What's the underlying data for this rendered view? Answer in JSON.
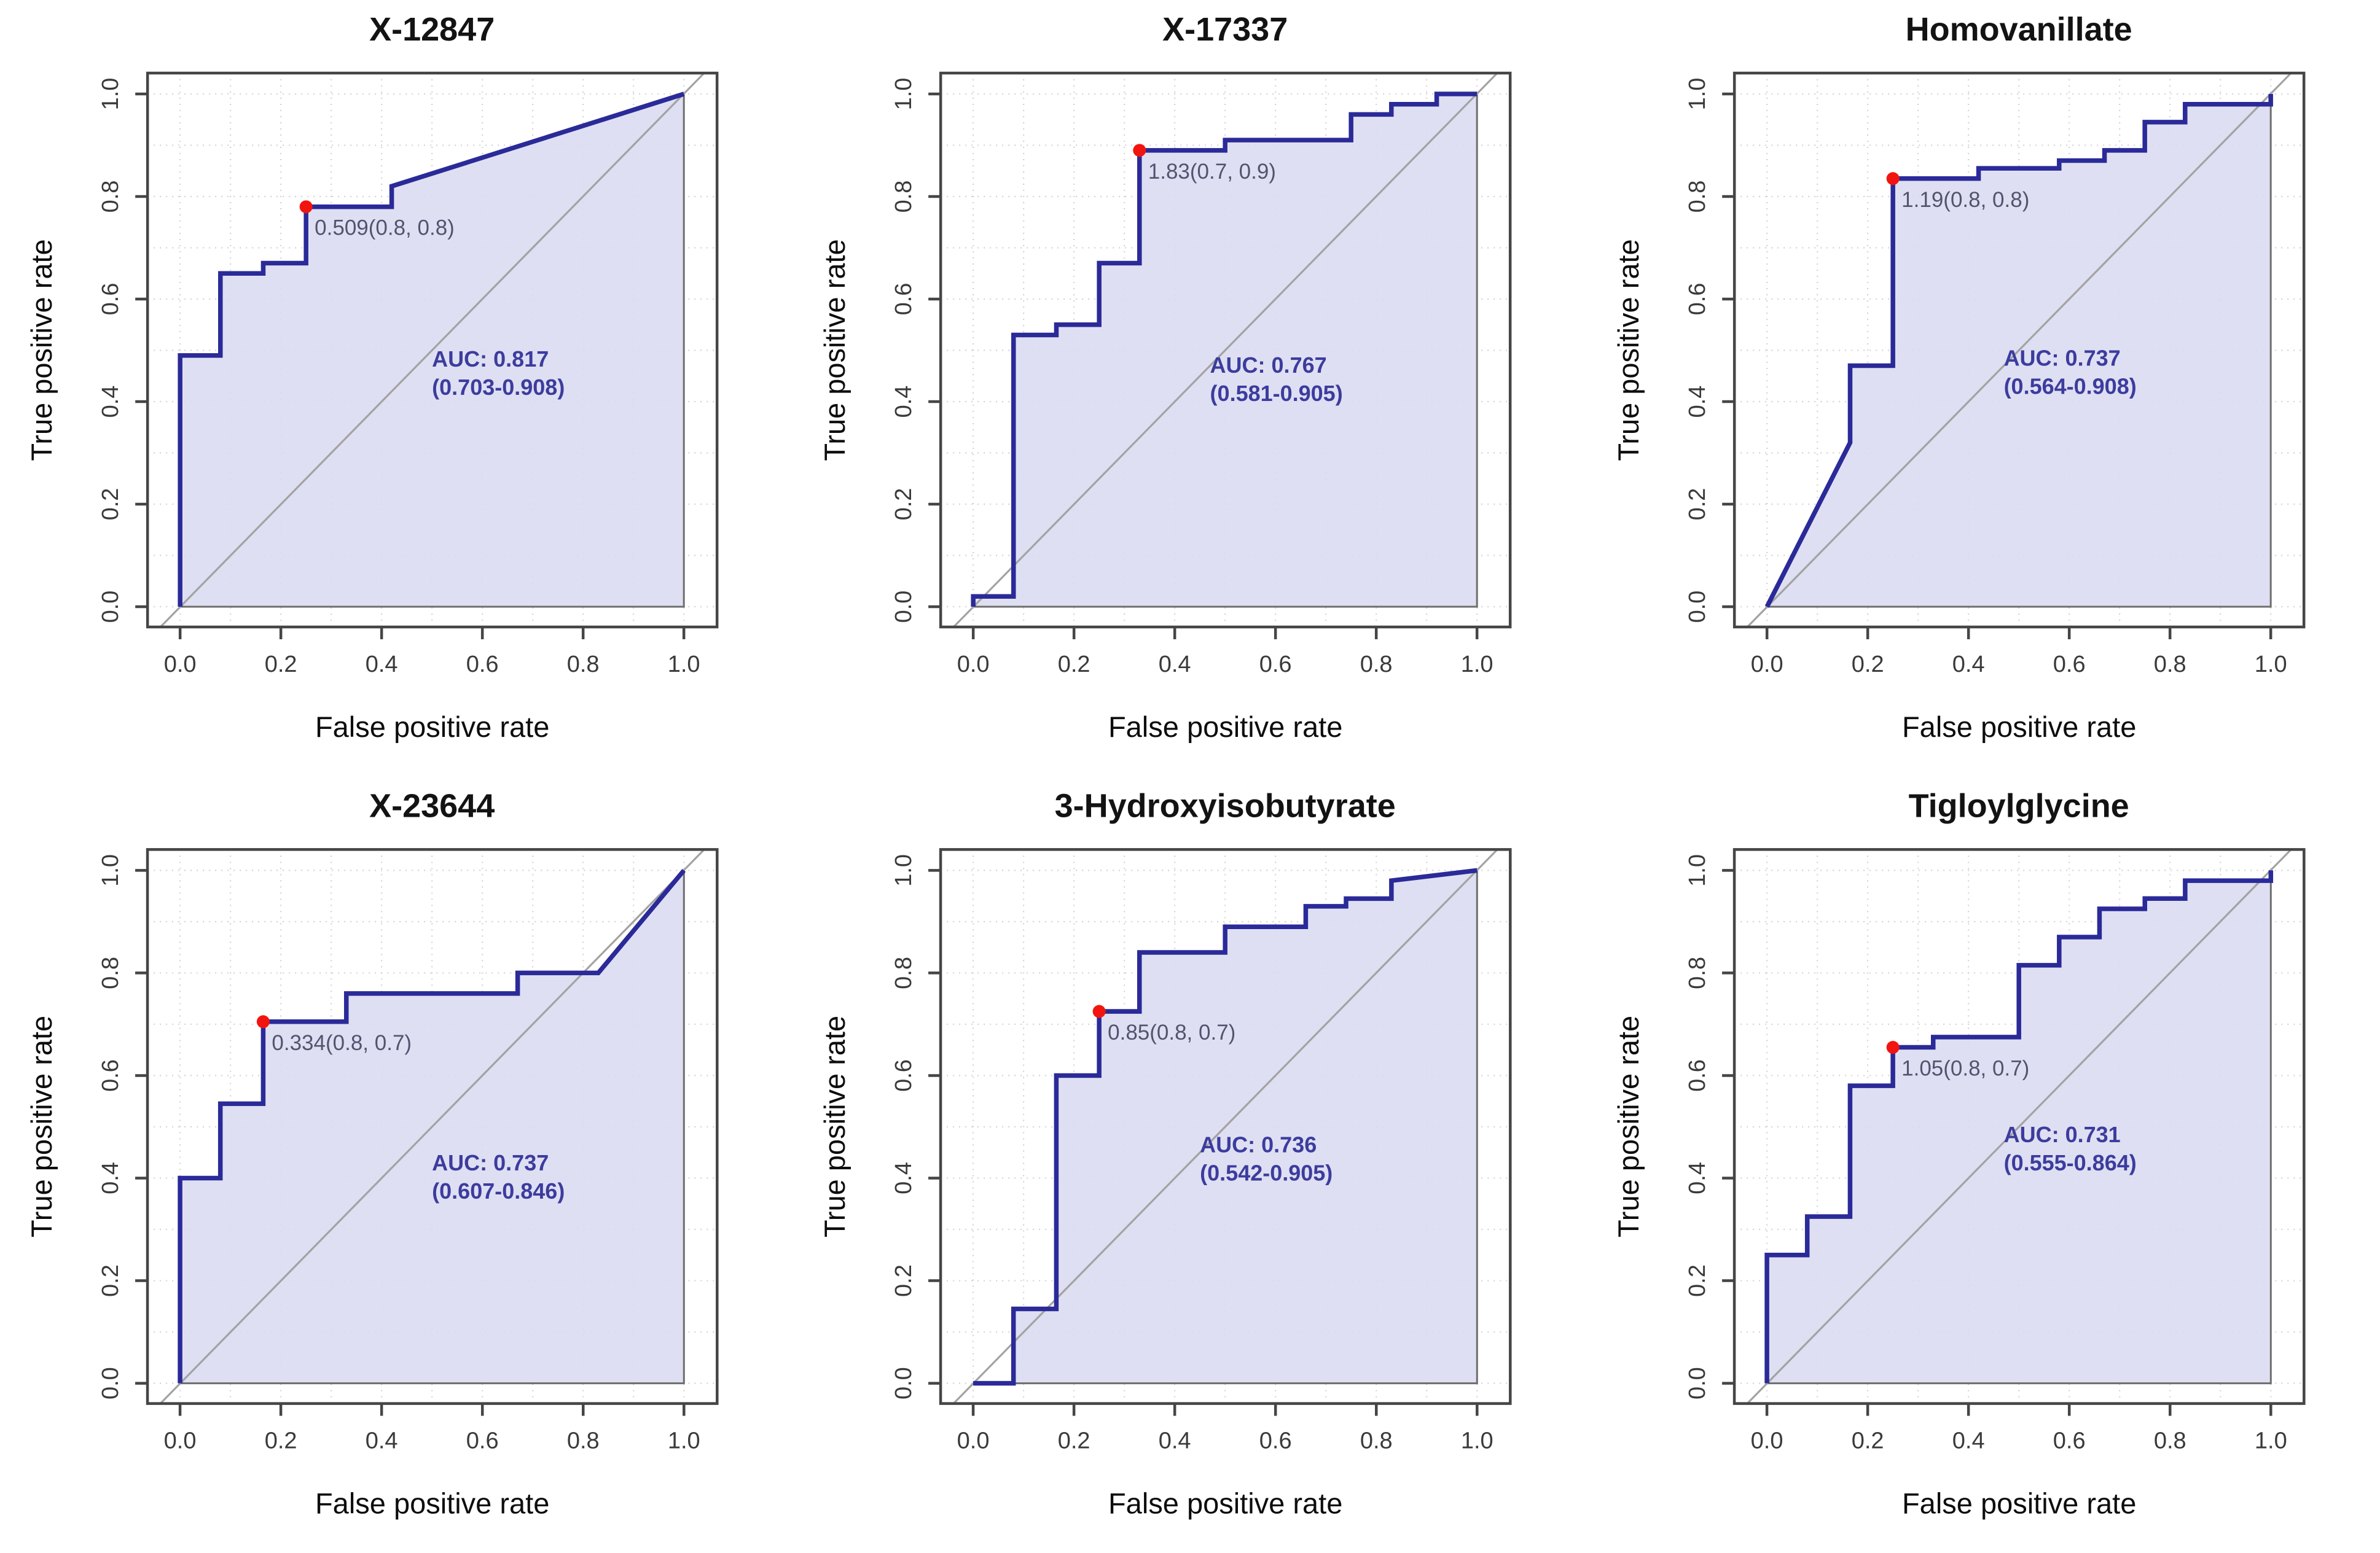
{
  "figure": {
    "layout": "2 rows x 3 columns of ROC curve panels",
    "xlabel": "False positive rate",
    "ylabel": "True positive rate",
    "x_tick_labels": [
      "0.0",
      "0.2",
      "0.4",
      "0.6",
      "0.8",
      "1.0"
    ],
    "y_tick_labels": [
      "0.0",
      "0.2",
      "0.4",
      "0.6",
      "0.8",
      "1.0"
    ],
    "xlim": [
      0,
      1
    ],
    "ylim": [
      0,
      1
    ],
    "grid": "dotted gridlines every 0.1, plus gray chance diagonal"
  },
  "colors": {
    "curve": "#2a2a99",
    "area_fill": "#dcdcf2",
    "area_border": "#6e6e6e",
    "diagonal": "#a3a3a3",
    "marker": "#f2150f",
    "auc_text": "#3c3c9e",
    "cutoff_text": "#53536f",
    "axis": "#454545",
    "grid": "#c9c9c9"
  },
  "chart_data": [
    {
      "type": "line",
      "title": "X-12847",
      "auc": 0.817,
      "auc_ci": [
        0.703,
        0.908
      ],
      "auc_label": "AUC: 0.817",
      "ci_label": "(0.703-0.908)",
      "auc_label_pos": [
        0.5,
        0.468
      ],
      "cutoff": 0.509,
      "cutoff_label": "0.509(0.8, 0.8)",
      "cutoff_point": [
        0.25,
        0.78
      ],
      "roc_points": [
        [
          0,
          0
        ],
        [
          0,
          0.49
        ],
        [
          0.08,
          0.49
        ],
        [
          0.08,
          0.65
        ],
        [
          0.165,
          0.65
        ],
        [
          0.165,
          0.67
        ],
        [
          0.25,
          0.67
        ],
        [
          0.25,
          0.78
        ],
        [
          0.42,
          0.78
        ],
        [
          0.42,
          0.82
        ],
        [
          1,
          1
        ]
      ]
    },
    {
      "type": "line",
      "title": "X-17337",
      "auc": 0.767,
      "auc_ci": [
        0.581,
        0.905
      ],
      "auc_label": "AUC: 0.767",
      "ci_label": "(0.581-0.905)",
      "auc_label_pos": [
        0.47,
        0.456
      ],
      "cutoff": 1.83,
      "cutoff_label": "1.83(0.7, 0.9)",
      "cutoff_point": [
        0.33,
        0.89
      ],
      "roc_points": [
        [
          0,
          0
        ],
        [
          0,
          0.02
        ],
        [
          0.08,
          0.02
        ],
        [
          0.08,
          0.53
        ],
        [
          0.165,
          0.53
        ],
        [
          0.165,
          0.55
        ],
        [
          0.25,
          0.55
        ],
        [
          0.25,
          0.67
        ],
        [
          0.33,
          0.67
        ],
        [
          0.33,
          0.89
        ],
        [
          0.5,
          0.89
        ],
        [
          0.5,
          0.91
        ],
        [
          0.75,
          0.91
        ],
        [
          0.75,
          0.96
        ],
        [
          0.83,
          0.96
        ],
        [
          0.83,
          0.98
        ],
        [
          0.92,
          0.98
        ],
        [
          0.92,
          1
        ],
        [
          1,
          1
        ]
      ]
    },
    {
      "type": "line",
      "title": "Homovanillate",
      "auc": 0.737,
      "auc_ci": [
        0.564,
        0.908
      ],
      "auc_label": "AUC: 0.737",
      "ci_label": "(0.564-0.908)",
      "auc_label_pos": [
        0.47,
        0.47
      ],
      "cutoff": 1.19,
      "cutoff_label": "1.19(0.8, 0.8)",
      "cutoff_point": [
        0.25,
        0.835
      ],
      "roc_points": [
        [
          0,
          0
        ],
        [
          0.165,
          0.32
        ],
        [
          0.165,
          0.47
        ],
        [
          0.25,
          0.47
        ],
        [
          0.25,
          0.835
        ],
        [
          0.42,
          0.835
        ],
        [
          0.42,
          0.855
        ],
        [
          0.58,
          0.855
        ],
        [
          0.58,
          0.87
        ],
        [
          0.67,
          0.87
        ],
        [
          0.67,
          0.89
        ],
        [
          0.75,
          0.89
        ],
        [
          0.75,
          0.945
        ],
        [
          0.83,
          0.945
        ],
        [
          0.83,
          0.98
        ],
        [
          1,
          0.98
        ],
        [
          1,
          1
        ]
      ]
    },
    {
      "type": "line",
      "title": "X-23644",
      "auc": 0.737,
      "auc_ci": [
        0.607,
        0.846
      ],
      "auc_label": "AUC: 0.737",
      "ci_label": "(0.607-0.846)",
      "auc_label_pos": [
        0.5,
        0.415
      ],
      "cutoff": 0.334,
      "cutoff_label": "0.334(0.8, 0.7)",
      "cutoff_point": [
        0.165,
        0.705
      ],
      "roc_points": [
        [
          0,
          0
        ],
        [
          0,
          0.4
        ],
        [
          0.08,
          0.4
        ],
        [
          0.08,
          0.545
        ],
        [
          0.165,
          0.545
        ],
        [
          0.165,
          0.705
        ],
        [
          0.33,
          0.705
        ],
        [
          0.33,
          0.76
        ],
        [
          0.67,
          0.76
        ],
        [
          0.67,
          0.8
        ],
        [
          0.83,
          0.8
        ],
        [
          1,
          1
        ]
      ]
    },
    {
      "type": "line",
      "title": "3-Hydroxyisobutyrate",
      "auc": 0.736,
      "auc_ci": [
        0.542,
        0.905
      ],
      "auc_label": "AUC: 0.736",
      "ci_label": "(0.542-0.905)",
      "auc_label_pos": [
        0.45,
        0.45
      ],
      "cutoff": 0.85,
      "cutoff_label": "0.85(0.8, 0.7)",
      "cutoff_point": [
        0.25,
        0.725
      ],
      "roc_points": [
        [
          0,
          0
        ],
        [
          0.08,
          0
        ],
        [
          0.08,
          0.145
        ],
        [
          0.165,
          0.145
        ],
        [
          0.165,
          0.6
        ],
        [
          0.25,
          0.6
        ],
        [
          0.25,
          0.725
        ],
        [
          0.33,
          0.725
        ],
        [
          0.33,
          0.84
        ],
        [
          0.5,
          0.84
        ],
        [
          0.5,
          0.89
        ],
        [
          0.66,
          0.89
        ],
        [
          0.66,
          0.93
        ],
        [
          0.74,
          0.93
        ],
        [
          0.74,
          0.945
        ],
        [
          0.83,
          0.945
        ],
        [
          0.83,
          0.98
        ],
        [
          1,
          1
        ]
      ]
    },
    {
      "type": "line",
      "title": "Tigloylglycine",
      "auc": 0.731,
      "auc_ci": [
        0.555,
        0.864
      ],
      "auc_label": "AUC: 0.731",
      "ci_label": "(0.555-0.864)",
      "auc_label_pos": [
        0.47,
        0.47
      ],
      "cutoff": 1.05,
      "cutoff_label": "1.05(0.8, 0.7)",
      "cutoff_point": [
        0.25,
        0.655
      ],
      "roc_points": [
        [
          0,
          0
        ],
        [
          0,
          0.25
        ],
        [
          0.08,
          0.25
        ],
        [
          0.08,
          0.325
        ],
        [
          0.165,
          0.325
        ],
        [
          0.165,
          0.58
        ],
        [
          0.25,
          0.58
        ],
        [
          0.25,
          0.655
        ],
        [
          0.33,
          0.655
        ],
        [
          0.33,
          0.675
        ],
        [
          0.5,
          0.675
        ],
        [
          0.5,
          0.815
        ],
        [
          0.58,
          0.815
        ],
        [
          0.58,
          0.87
        ],
        [
          0.66,
          0.87
        ],
        [
          0.66,
          0.925
        ],
        [
          0.75,
          0.925
        ],
        [
          0.75,
          0.945
        ],
        [
          0.83,
          0.945
        ],
        [
          0.83,
          0.98
        ],
        [
          1,
          0.98
        ],
        [
          1,
          1
        ]
      ]
    }
  ]
}
